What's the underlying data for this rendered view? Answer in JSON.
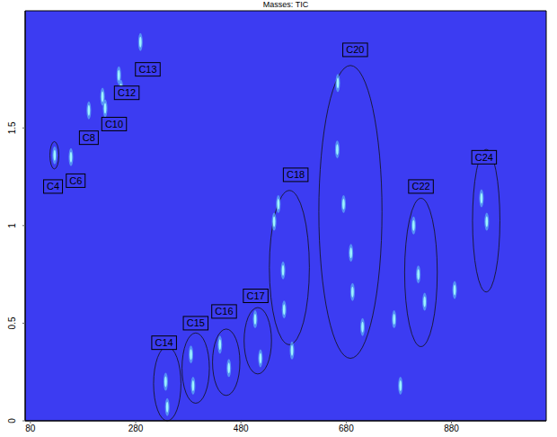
{
  "chart_data": {
    "type": "scatter",
    "title": "Masses: TIC",
    "x": [
      126,
      157,
      191,
      217,
      222,
      248,
      252,
      289,
      337,
      340,
      385,
      389,
      440,
      457,
      507,
      517,
      543,
      551,
      560,
      562,
      577,
      664,
      663,
      675,
      689,
      692,
      711,
      771,
      783,
      808,
      817,
      829,
      886,
      937,
      947
    ],
    "y": [
      1.36,
      1.35,
      1.59,
      1.66,
      1.6,
      1.77,
      1.7,
      1.94,
      0.2,
      0.07,
      0.34,
      0.18,
      0.39,
      0.27,
      0.52,
      0.32,
      1.02,
      1.11,
      0.77,
      0.57,
      0.36,
      1.73,
      1.39,
      1.11,
      0.86,
      0.66,
      0.48,
      0.52,
      0.18,
      1.0,
      0.75,
      0.61,
      0.67,
      1.14,
      1.02
    ],
    "color": "#9ef4ff",
    "xlim": [
      70,
      1060
    ],
    "xticks": [
      80,
      280,
      480,
      680,
      880
    ],
    "ylim": [
      0,
      2.1
    ],
    "yticks": [
      0,
      0.5,
      1,
      1.5
    ],
    "grid": false,
    "annotations": [
      {
        "text": "C4",
        "x": 123,
        "y": 1.2,
        "region": {
          "x": [
            117,
            134
          ],
          "y": [
            1.29,
            1.43
          ]
        }
      },
      {
        "text": "C6",
        "x": 166,
        "y": 1.23
      },
      {
        "text": "C8",
        "x": 191,
        "y": 1.45
      },
      {
        "text": "C10",
        "x": 239,
        "y": 1.52
      },
      {
        "text": "C12",
        "x": 263,
        "y": 1.68
      },
      {
        "text": "C13",
        "x": 303,
        "y": 1.8
      },
      {
        "text": "C14",
        "x": 334,
        "y": 0.4,
        "region": {
          "x": [
            314,
            366
          ],
          "y": [
            0,
            0.38
          ]
        }
      },
      {
        "text": "C15",
        "x": 394,
        "y": 0.5,
        "region": {
          "x": [
            368,
            420
          ],
          "y": [
            0.09,
            0.45
          ]
        }
      },
      {
        "text": "C16",
        "x": 448,
        "y": 0.56,
        "region": {
          "x": [
            426,
            478
          ],
          "y": [
            0.13,
            0.47
          ]
        }
      },
      {
        "text": "C17",
        "x": 508,
        "y": 0.64,
        "region": {
          "x": [
            486,
            538
          ],
          "y": [
            0.24,
            0.58
          ]
        }
      },
      {
        "text": "C18",
        "x": 584,
        "y": 1.26,
        "region": {
          "x": [
            534,
            610
          ],
          "y": [
            0.39,
            1.18
          ]
        }
      },
      {
        "text": "C20",
        "x": 697,
        "y": 1.9,
        "region": {
          "x": [
            628,
            748
          ],
          "y": [
            0.32,
            1.82
          ]
        }
      },
      {
        "text": "C22",
        "x": 822,
        "y": 1.2,
        "region": {
          "x": [
            791,
            853
          ],
          "y": [
            0.38,
            1.14
          ]
        }
      },
      {
        "text": "C24",
        "x": 942,
        "y": 1.35,
        "region": {
          "x": [
            920,
            972
          ],
          "y": [
            0.66,
            1.39
          ]
        }
      }
    ]
  }
}
